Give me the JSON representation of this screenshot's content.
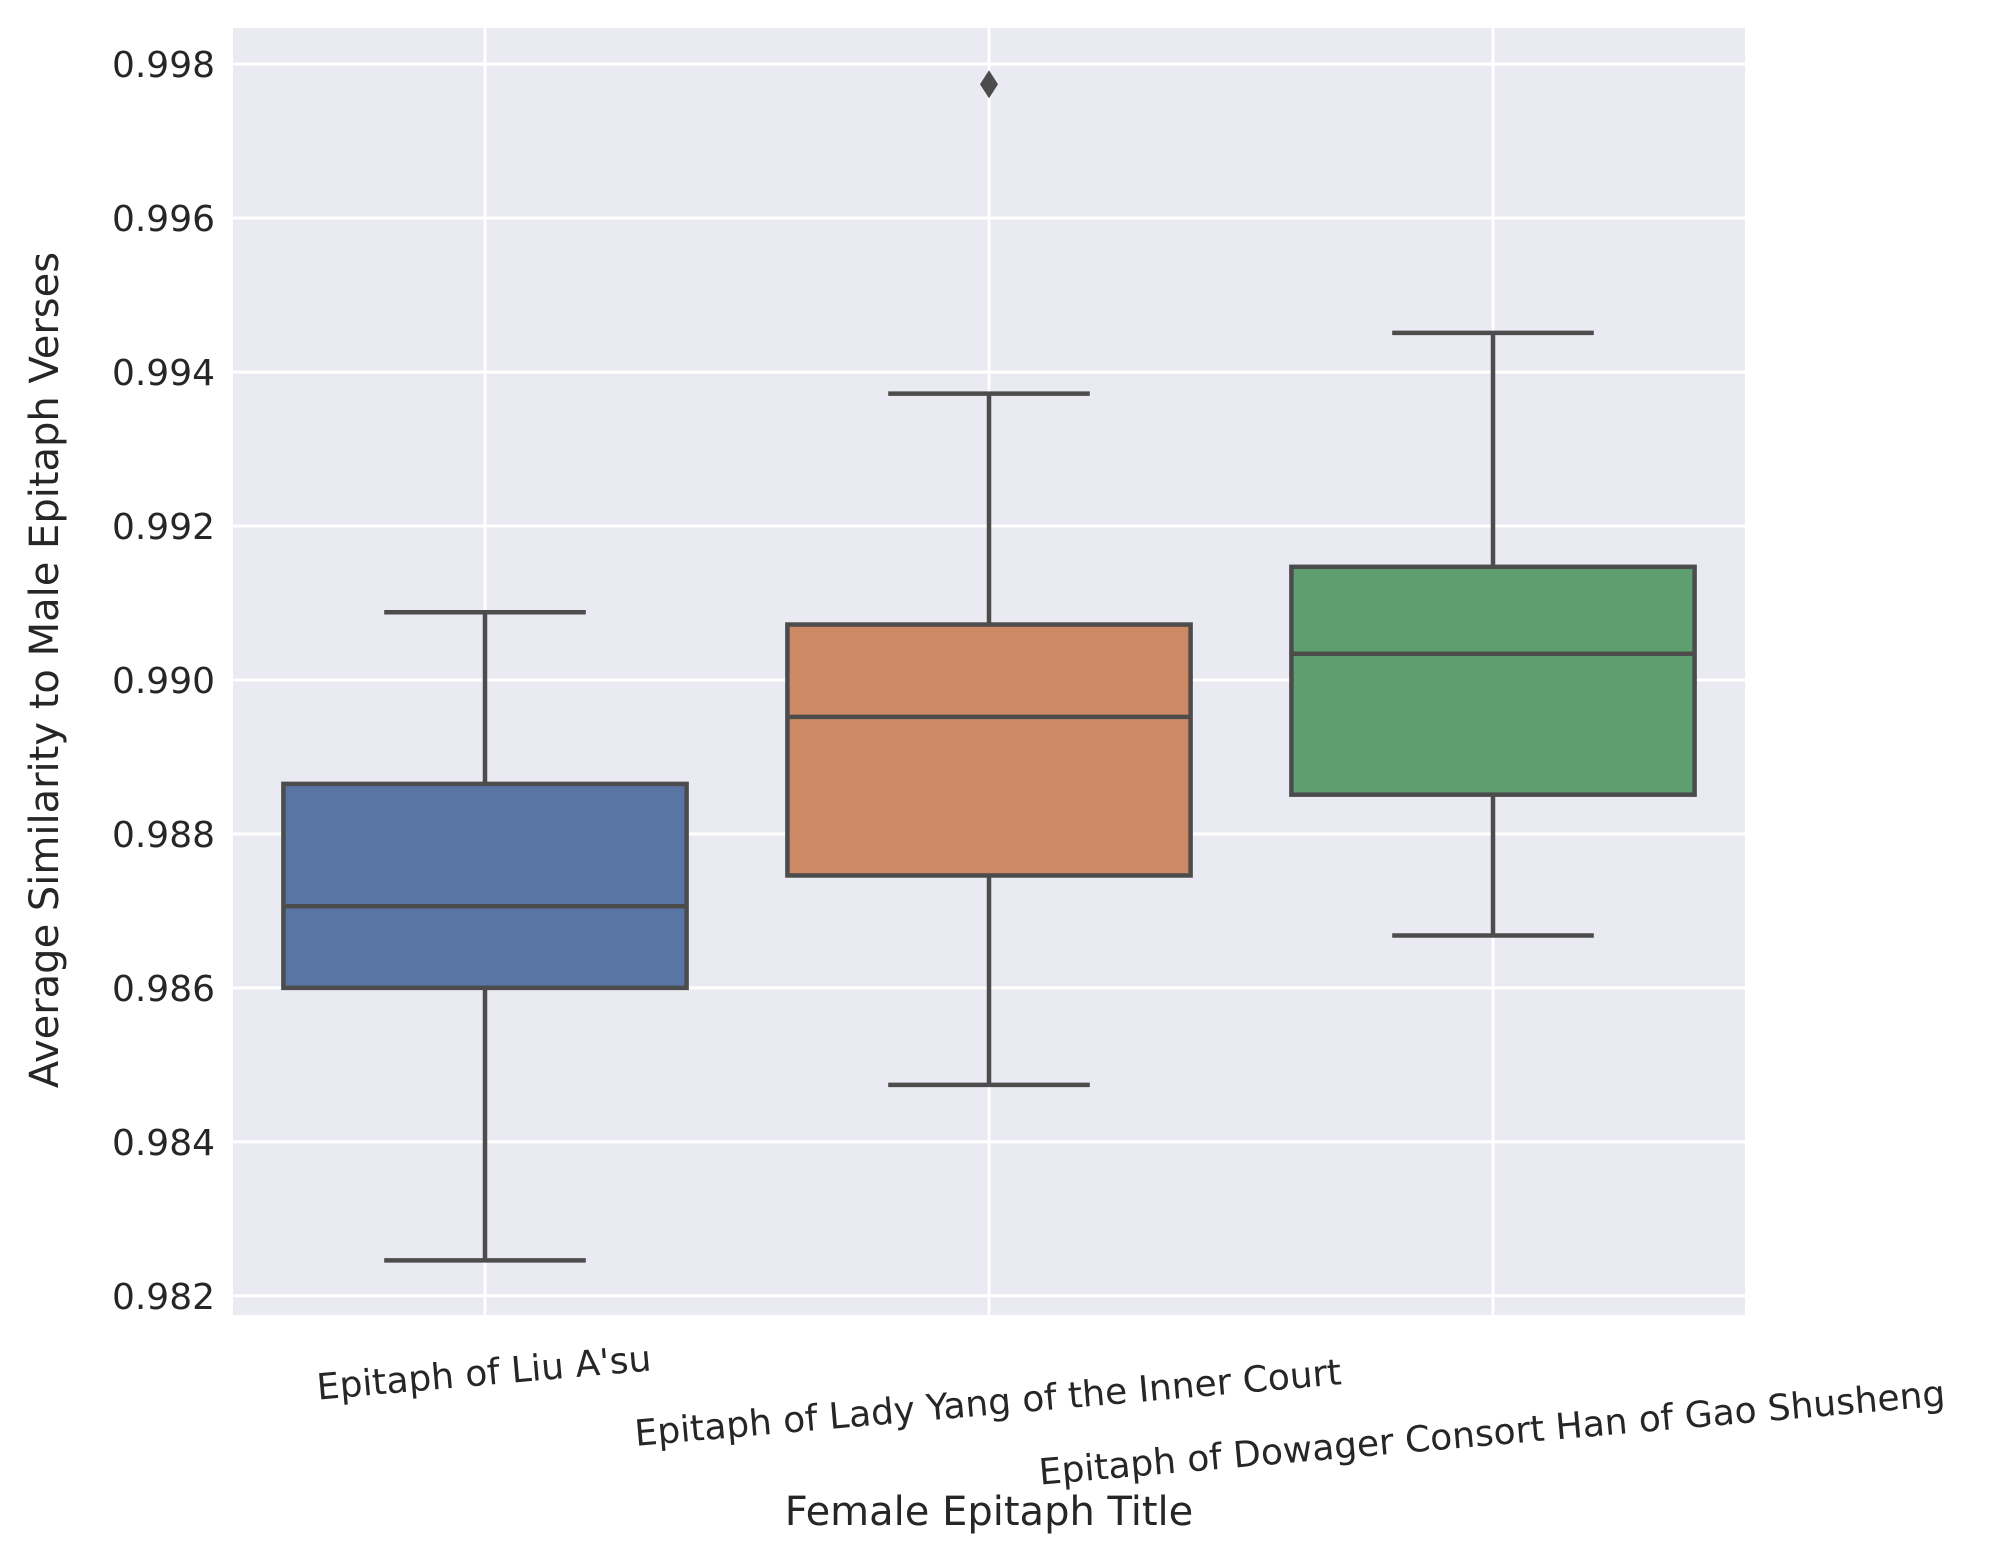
{
  "chart_data": {
    "type": "box",
    "xlabel": "Female Epitaph Title",
    "ylabel": "Average Similarity to Male Epitaph Verses",
    "ylim": [
      0.98175,
      0.99847
    ],
    "yticks": [
      "0.982",
      "0.984",
      "0.986",
      "0.988",
      "0.990",
      "0.992",
      "0.994",
      "0.996",
      "0.998"
    ],
    "grid": true,
    "background": "#EAEAF2",
    "categories": [
      "Epitaph of Liu A'su",
      "Epitaph of Lady Yang of the Inner Court",
      "Epitaph of Dowager Consort Han of Gao Shusheng"
    ],
    "boxes": [
      {
        "category": "Epitaph of Liu A'su",
        "whisker_low": 0.98246,
        "q1": 0.986,
        "median": 0.98706,
        "q3": 0.98865,
        "whisker_high": 0.99088,
        "outliers": [],
        "color": "#5975A4"
      },
      {
        "category": "Epitaph of Lady Yang of the Inner Court",
        "whisker_low": 0.98474,
        "q1": 0.98746,
        "median": 0.98952,
        "q3": 0.99072,
        "whisker_high": 0.99372,
        "outliers": [
          0.99774
        ],
        "color": "#CC8963"
      },
      {
        "category": "Epitaph of Dowager Consort Han of Gao Shusheng",
        "whisker_low": 0.98668,
        "q1": 0.98851,
        "median": 0.99034,
        "q3": 0.99147,
        "whisker_high": 0.99451,
        "outliers": [],
        "color": "#5F9E6E"
      }
    ]
  }
}
